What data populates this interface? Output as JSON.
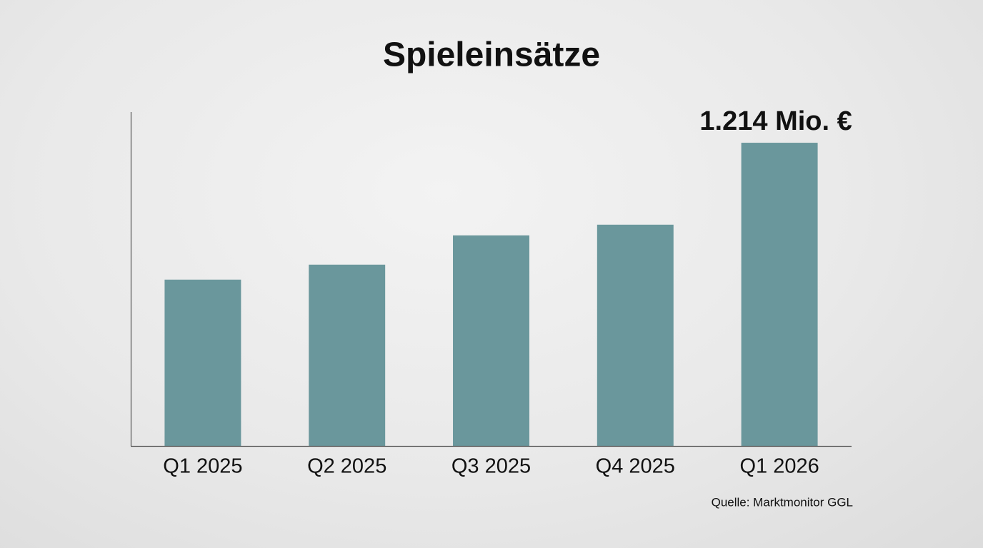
{
  "chart_data": {
    "type": "bar",
    "title": "Spieleinsätze",
    "categories": [
      "Q1 2025",
      "Q2 2025",
      "Q3 2025",
      "Q4 2025",
      "Q1 2026"
    ],
    "values": [
      666,
      726,
      843,
      886,
      1214
    ],
    "value_labels": [
      null,
      null,
      null,
      null,
      "1.214 Mio. €"
    ],
    "color": "#6a979c",
    "ylim": [
      0,
      1337
    ],
    "source": "Quelle: Marktmonitor GGL"
  }
}
